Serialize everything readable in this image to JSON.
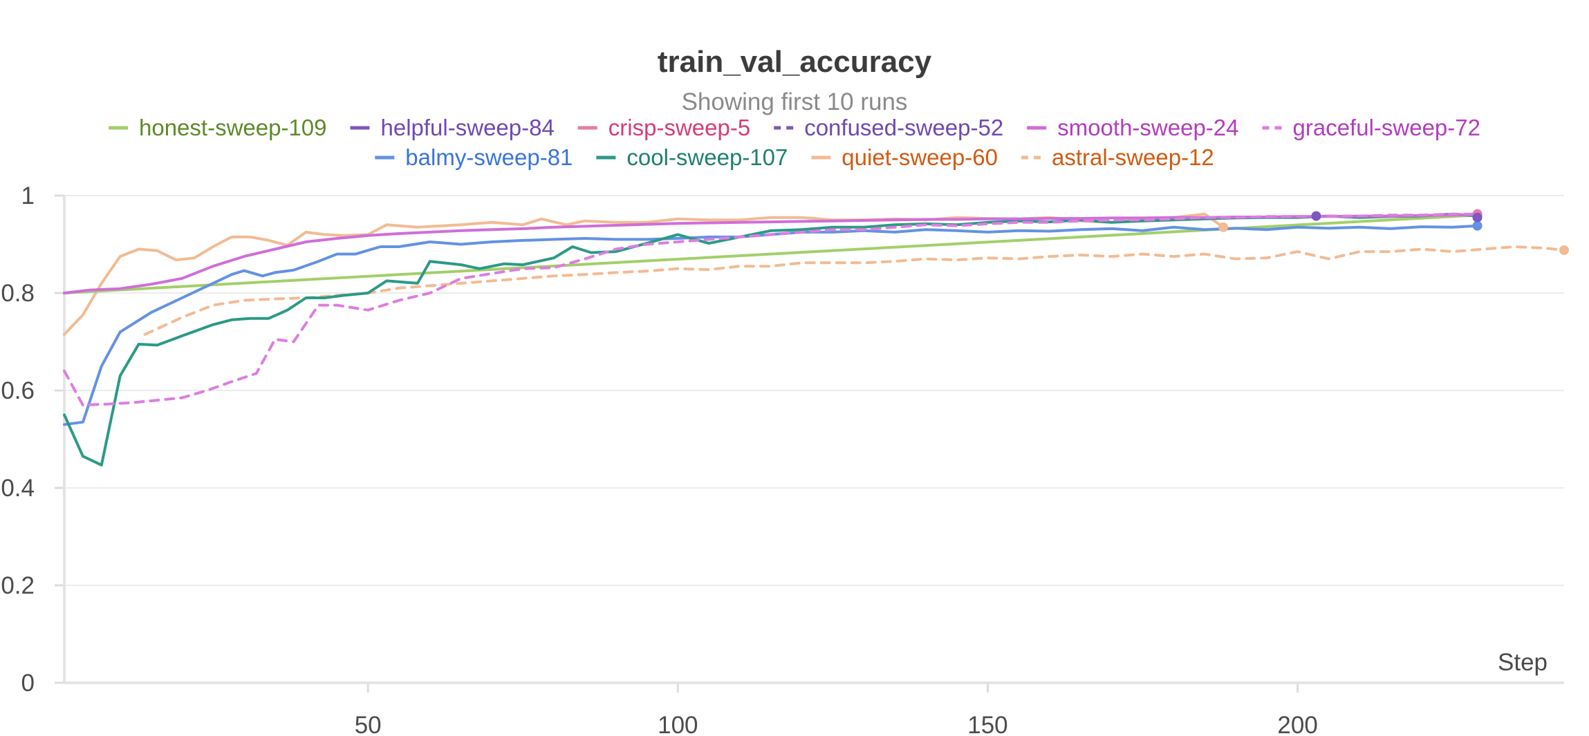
{
  "chart_data": {
    "type": "line",
    "title": "train_val_accuracy",
    "subtitle": "Showing first 10 runs",
    "xlabel": "Step",
    "ylabel": "",
    "xlim": [
      1,
      243
    ],
    "ylim": [
      0,
      1
    ],
    "xticks": [
      50,
      100,
      150,
      200
    ],
    "yticks": [
      0,
      0.2,
      0.4,
      0.6,
      0.8,
      1
    ],
    "ytick_labels": [
      "0",
      "0.2",
      "0.4",
      "0.6",
      "0.8",
      "1"
    ],
    "grid": true,
    "legend_position": "top",
    "series": [
      {
        "name": "honest-sweep-109",
        "color": "#a3cf6a",
        "text_color": "#5d8a28",
        "dash": false,
        "x": [
          1,
          229
        ],
        "y": [
          0.8,
          0.96
        ]
      },
      {
        "name": "helpful-sweep-84",
        "color": "#7e57c2",
        "text_color": "#6f48b3",
        "dash": false,
        "x": [
          203
        ],
        "y": [
          0.958
        ]
      },
      {
        "name": "crisp-sweep-5",
        "color": "#e97aa5",
        "text_color": "#d63c76",
        "dash": false,
        "x": [
          229
        ],
        "y": [
          0.962
        ]
      },
      {
        "name": "confused-sweep-52",
        "color": "#7e57c2",
        "text_color": "#6f48b3",
        "dash": true,
        "x": [
          229
        ],
        "y": [
          0.955
        ]
      },
      {
        "name": "smooth-sweep-24",
        "color": "#cf6ed9",
        "text_color": "#b23dbd",
        "dash": false,
        "x": [
          1,
          5,
          10,
          15,
          20,
          25,
          30,
          35,
          40,
          45,
          50,
          55,
          60,
          65,
          70,
          75,
          80,
          85,
          90,
          95,
          100,
          105,
          110,
          115,
          120,
          125,
          130,
          135,
          140,
          145,
          150,
          155,
          160,
          165,
          170,
          175,
          180,
          185,
          190,
          195,
          200,
          205,
          210,
          215,
          220,
          225,
          229
        ],
        "y": [
          0.8,
          0.806,
          0.809,
          0.818,
          0.83,
          0.855,
          0.875,
          0.89,
          0.905,
          0.912,
          0.918,
          0.922,
          0.925,
          0.928,
          0.93,
          0.932,
          0.935,
          0.937,
          0.939,
          0.941,
          0.943,
          0.944,
          0.945,
          0.946,
          0.947,
          0.948,
          0.949,
          0.95,
          0.951,
          0.951,
          0.952,
          0.952,
          0.953,
          0.953,
          0.954,
          0.954,
          0.955,
          0.955,
          0.956,
          0.956,
          0.957,
          0.957,
          0.958,
          0.958,
          0.959,
          0.96,
          0.961
        ]
      },
      {
        "name": "graceful-sweep-72",
        "color": "#dc7ee0",
        "text_color": "#b23dbd",
        "dash": true,
        "x": [
          1,
          4,
          8,
          12,
          16,
          20,
          24,
          28,
          32,
          35,
          38,
          42,
          45,
          50,
          55,
          60,
          65,
          70,
          75,
          80,
          85,
          90,
          95,
          100,
          105,
          110,
          115,
          120,
          125,
          130,
          135,
          140,
          145,
          150,
          155,
          160,
          165,
          170,
          175,
          180,
          185,
          190,
          195,
          200,
          205,
          210,
          215,
          220,
          225,
          229
        ],
        "y": [
          0.64,
          0.57,
          0.572,
          0.575,
          0.58,
          0.585,
          0.6,
          0.618,
          0.635,
          0.705,
          0.7,
          0.775,
          0.775,
          0.765,
          0.785,
          0.8,
          0.83,
          0.84,
          0.85,
          0.852,
          0.87,
          0.89,
          0.9,
          0.905,
          0.91,
          0.915,
          0.92,
          0.925,
          0.93,
          0.93,
          0.935,
          0.94,
          0.938,
          0.942,
          0.945,
          0.945,
          0.948,
          0.95,
          0.95,
          0.952,
          0.955,
          0.955,
          0.957,
          0.957,
          0.958,
          0.958,
          0.96,
          0.96,
          0.962,
          0.962
        ]
      },
      {
        "name": "balmy-sweep-81",
        "color": "#6492e2",
        "text_color": "#3a74d8",
        "dash": false,
        "x": [
          1,
          4,
          7,
          10,
          15,
          20,
          25,
          28,
          30,
          33,
          35,
          38,
          42,
          45,
          48,
          52,
          55,
          60,
          65,
          70,
          75,
          80,
          85,
          90,
          95,
          100,
          105,
          110,
          115,
          120,
          125,
          130,
          135,
          140,
          145,
          150,
          155,
          160,
          165,
          170,
          175,
          180,
          185,
          190,
          195,
          200,
          205,
          210,
          215,
          220,
          225,
          229
        ],
        "y": [
          0.53,
          0.535,
          0.65,
          0.72,
          0.76,
          0.79,
          0.82,
          0.838,
          0.846,
          0.835,
          0.842,
          0.847,
          0.865,
          0.88,
          0.88,
          0.895,
          0.895,
          0.905,
          0.9,
          0.905,
          0.908,
          0.91,
          0.912,
          0.91,
          0.91,
          0.912,
          0.915,
          0.915,
          0.92,
          0.925,
          0.925,
          0.928,
          0.925,
          0.93,
          0.928,
          0.925,
          0.928,
          0.927,
          0.93,
          0.932,
          0.928,
          0.935,
          0.93,
          0.933,
          0.93,
          0.935,
          0.933,
          0.935,
          0.932,
          0.936,
          0.935,
          0.938
        ]
      },
      {
        "name": "cool-sweep-107",
        "color": "#2b9a86",
        "text_color": "#1f8070",
        "dash": false,
        "x": [
          1,
          4,
          7,
          10,
          13,
          16,
          20,
          25,
          28,
          31,
          34,
          37,
          40,
          43,
          46,
          50,
          53,
          58,
          60,
          65,
          68,
          72,
          75,
          80,
          83,
          86,
          90,
          95,
          100,
          105,
          110,
          115,
          120,
          125,
          130,
          135,
          140,
          145,
          150,
          155,
          160,
          165,
          170,
          175,
          180,
          185,
          190,
          195,
          200,
          205,
          210,
          215,
          220,
          225,
          229
        ],
        "y": [
          0.55,
          0.465,
          0.447,
          0.63,
          0.695,
          0.693,
          0.712,
          0.735,
          0.745,
          0.748,
          0.748,
          0.765,
          0.79,
          0.79,
          0.795,
          0.8,
          0.825,
          0.82,
          0.865,
          0.858,
          0.85,
          0.86,
          0.858,
          0.872,
          0.895,
          0.883,
          0.885,
          0.902,
          0.92,
          0.902,
          0.915,
          0.928,
          0.93,
          0.935,
          0.935,
          0.94,
          0.942,
          0.94,
          0.945,
          0.948,
          0.946,
          0.95,
          0.945,
          0.948,
          0.95,
          0.952,
          0.954,
          0.955,
          0.955,
          0.958,
          0.955,
          0.957,
          0.958,
          0.962,
          0.958
        ]
      },
      {
        "name": "quiet-sweep-60",
        "color": "#f2bb94",
        "text_color": "#cf5b12",
        "dash": false,
        "x": [
          1,
          4,
          7,
          10,
          13,
          16,
          19,
          22,
          25,
          28,
          31,
          34,
          37,
          40,
          43,
          46,
          50,
          53,
          58,
          62,
          65,
          70,
          75,
          78,
          82,
          85,
          90,
          95,
          100,
          105,
          110,
          115,
          120,
          125,
          130,
          135,
          140,
          145,
          150,
          155,
          160,
          165,
          170,
          175,
          180,
          185,
          188
        ],
        "y": [
          0.715,
          0.755,
          0.82,
          0.875,
          0.89,
          0.887,
          0.868,
          0.872,
          0.895,
          0.915,
          0.915,
          0.908,
          0.898,
          0.925,
          0.92,
          0.918,
          0.92,
          0.94,
          0.935,
          0.938,
          0.94,
          0.945,
          0.94,
          0.952,
          0.94,
          0.948,
          0.945,
          0.945,
          0.952,
          0.95,
          0.95,
          0.955,
          0.955,
          0.95,
          0.95,
          0.952,
          0.95,
          0.955,
          0.953,
          0.952,
          0.955,
          0.948,
          0.945,
          0.953,
          0.955,
          0.962,
          0.935
        ]
      },
      {
        "name": "astral-sweep-12",
        "color": "#f2bb94",
        "text_color": "#cf5b12",
        "dash": true,
        "x": [
          14,
          20,
          25,
          30,
          35,
          40,
          45,
          50,
          55,
          60,
          65,
          70,
          75,
          80,
          85,
          90,
          95,
          100,
          105,
          110,
          115,
          120,
          125,
          130,
          135,
          140,
          145,
          150,
          155,
          160,
          165,
          170,
          175,
          180,
          185,
          190,
          195,
          200,
          205,
          210,
          215,
          220,
          225,
          230,
          235,
          240,
          243
        ],
        "y": [
          0.715,
          0.75,
          0.775,
          0.785,
          0.788,
          0.79,
          0.795,
          0.8,
          0.81,
          0.815,
          0.82,
          0.825,
          0.83,
          0.835,
          0.838,
          0.842,
          0.845,
          0.85,
          0.848,
          0.855,
          0.855,
          0.862,
          0.862,
          0.862,
          0.865,
          0.87,
          0.868,
          0.872,
          0.87,
          0.875,
          0.878,
          0.875,
          0.88,
          0.875,
          0.88,
          0.87,
          0.872,
          0.885,
          0.87,
          0.885,
          0.885,
          0.89,
          0.885,
          0.89,
          0.895,
          0.892,
          0.888
        ]
      }
    ]
  }
}
